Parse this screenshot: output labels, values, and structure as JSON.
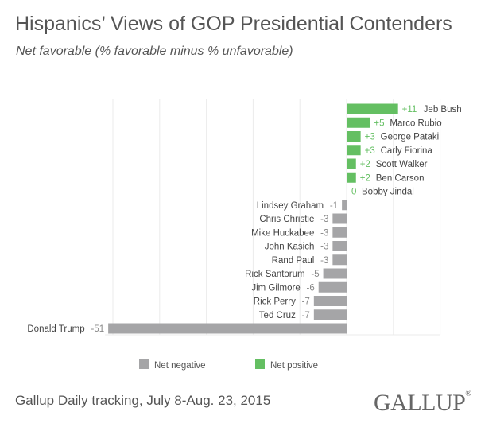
{
  "title": "Hispanics’ Views of GOP Presidential Contenders",
  "subtitle": "Net favorable (% favorable minus % unfavorable)",
  "footer": "Gallup Daily tracking, July 8-Aug. 23, 2015",
  "logo": "GALLUP",
  "chart_data": {
    "type": "bar",
    "orientation": "horizontal",
    "categories": [
      "Jeb Bush",
      "Marco Rubio",
      "George Pataki",
      "Carly Fiorina",
      "Scott Walker",
      "Ben Carson",
      "Bobby Jindal",
      "Lindsey Graham",
      "Chris Christie",
      "Mike Huckabee",
      "John Kasich",
      "Rand Paul",
      "Rick Santorum",
      "Jim Gilmore",
      "Rick Perry",
      "Ted Cruz",
      "Donald Trump"
    ],
    "values": [
      11,
      5,
      3,
      3,
      2,
      2,
      0,
      -1,
      -3,
      -3,
      -3,
      -3,
      -5,
      -6,
      -7,
      -7,
      -51
    ],
    "labels": [
      "+11",
      "+5",
      "+3",
      "+3",
      "+2",
      "+2",
      "0",
      "-1",
      "-3",
      "-3",
      "-3",
      "-3",
      "-5",
      "-6",
      "-7",
      "-7",
      "-51"
    ],
    "xlim": [
      -52,
      20
    ],
    "grid": true,
    "legend": {
      "placement": "bottom",
      "entries": [
        {
          "name": "Net negative",
          "color": "#a5a5a7"
        },
        {
          "name": "Net positive",
          "color": "#64bf62"
        }
      ]
    },
    "colors": {
      "negative": "#a5a5a7",
      "positive": "#64bf62",
      "positive_label": "#64bf62",
      "negative_label": "#888888",
      "name_label": "#444444"
    }
  }
}
